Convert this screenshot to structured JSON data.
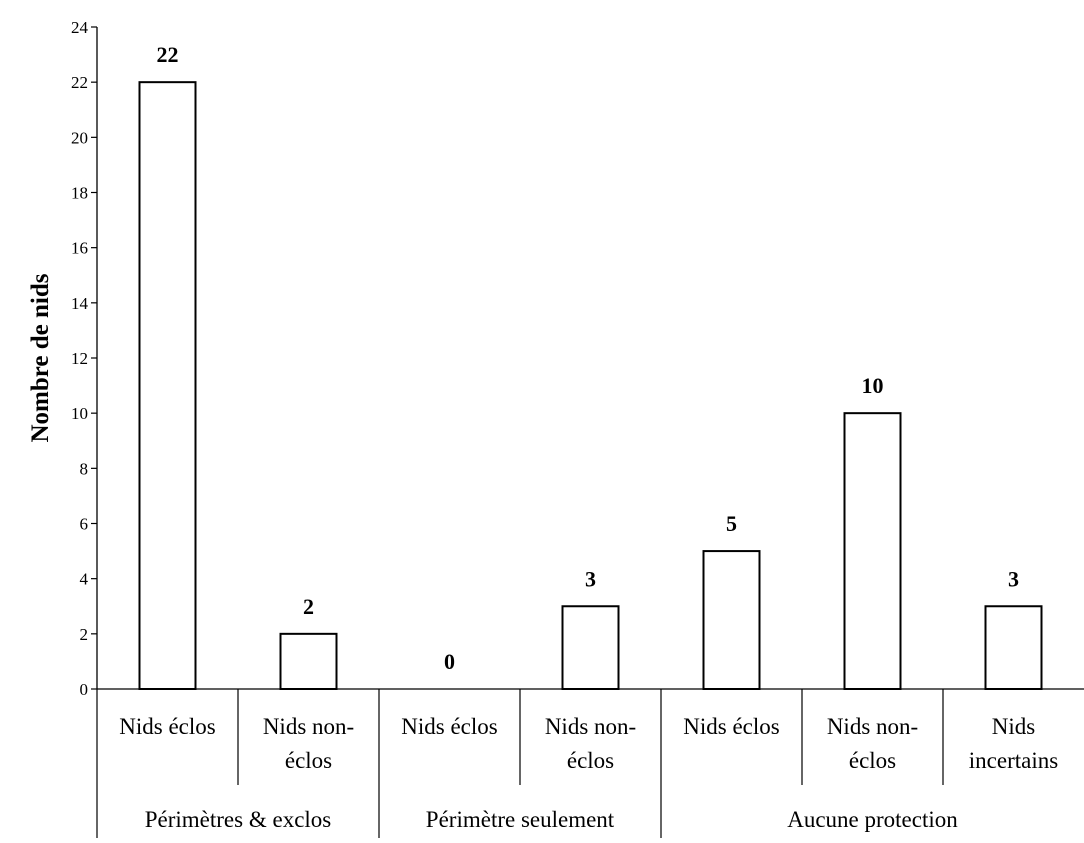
{
  "chart_data": {
    "type": "bar",
    "title": "",
    "ylabel": "Nombre de nids",
    "xlabel": "",
    "ylim": [
      0,
      24
    ],
    "yticks": [
      0,
      2,
      4,
      6,
      8,
      10,
      12,
      14,
      16,
      18,
      20,
      22,
      24
    ],
    "grid": false,
    "bar_fill": "#ffffff",
    "bar_stroke": "#000000",
    "categories": [
      [
        "Nids éclos"
      ],
      [
        "Nids non-",
        "éclos"
      ],
      [
        "Nids éclos"
      ],
      [
        "Nids non-",
        "éclos"
      ],
      [
        "Nids éclos"
      ],
      [
        "Nids non-",
        "éclos"
      ],
      [
        "Nids",
        "incertains"
      ]
    ],
    "values": [
      22,
      2,
      0,
      3,
      5,
      10,
      3
    ],
    "data_labels": [
      "22",
      "2",
      "0",
      "3",
      "5",
      "10",
      "3"
    ],
    "groups": [
      {
        "label": "Périmètres & exclos",
        "span": [
          0,
          1
        ]
      },
      {
        "label": "Périmètre seulement",
        "span": [
          2,
          3
        ]
      },
      {
        "label": "Aucune protection",
        "span": [
          4,
          6
        ]
      }
    ]
  }
}
